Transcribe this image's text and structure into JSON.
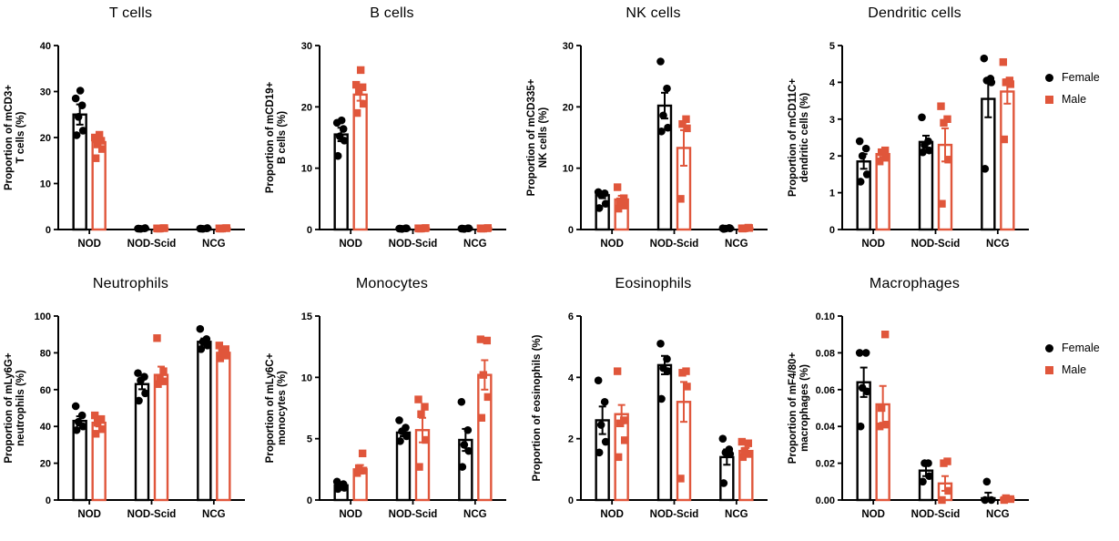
{
  "figure": {
    "background": "#ffffff",
    "female_color": "#000000",
    "male_color": "#E0563B"
  },
  "legend": {
    "items": [
      {
        "label": "Female",
        "marker": "circle",
        "color": "#000000"
      },
      {
        "label": "Male",
        "marker": "square",
        "color": "#E0563B"
      }
    ]
  },
  "chart_data": [
    {
      "id": "t-cells",
      "type": "bar",
      "title": "T cells",
      "ylabel_lines": [
        "Proportion of mCD3+",
        "T cells (%)"
      ],
      "ylim": [
        0,
        40
      ],
      "yticks": [
        0,
        10,
        20,
        30,
        40
      ],
      "ytick_labels": [
        "0",
        "10",
        "20",
        "30",
        "40"
      ],
      "categories": [
        "NOD",
        "NOD-Scid",
        "NCG"
      ],
      "series": [
        {
          "name": "Female",
          "marker": "circle",
          "color": "#000000",
          "means": [
            25,
            0.2,
            0.25
          ],
          "sem": [
            2.2,
            0,
            0
          ],
          "points": [
            [
              20.5,
              21.5,
              24.5,
              27,
              28.5,
              30.2
            ],
            [
              0.2,
              0.3,
              0.15,
              0.25,
              0.2
            ],
            [
              0.2,
              0.3,
              0.15,
              0.25,
              0.2
            ]
          ]
        },
        {
          "name": "Male",
          "marker": "square",
          "color": "#E0563B",
          "means": [
            19,
            0.25,
            0.3
          ],
          "sem": [
            0.9,
            0,
            0
          ],
          "points": [
            [
              15.5,
              17.5,
              18.5,
              19.3,
              20,
              20.6
            ],
            [
              0.2,
              0.3,
              0.2,
              0.3,
              0.25
            ],
            [
              0.2,
              0.3,
              0.2,
              0.3,
              0.25
            ]
          ]
        }
      ]
    },
    {
      "id": "b-cells",
      "type": "bar",
      "title": "B cells",
      "ylabel_lines": [
        "Proportion of mCD19+",
        "B cells (%)"
      ],
      "ylim": [
        0,
        30
      ],
      "yticks": [
        0,
        10,
        20,
        30
      ],
      "ytick_labels": [
        "0",
        "10",
        "20",
        "30"
      ],
      "categories": [
        "NOD",
        "NOD-Scid",
        "NCG"
      ],
      "series": [
        {
          "name": "Female",
          "marker": "circle",
          "color": "#000000",
          "means": [
            15.5,
            0.15,
            0.2
          ],
          "sem": [
            1.1,
            0,
            0
          ],
          "points": [
            [
              12,
              14.5,
              15.2,
              16.4,
              17.4,
              17.8
            ],
            [
              0.15,
              0.2,
              0.1,
              0.2,
              0.15
            ],
            [
              0.15,
              0.2,
              0.1,
              0.2,
              0.15
            ]
          ]
        },
        {
          "name": "Male",
          "marker": "square",
          "color": "#E0563B",
          "means": [
            22,
            0.2,
            0.25
          ],
          "sem": [
            1.0,
            0,
            0
          ],
          "points": [
            [
              19,
              20.5,
              22.6,
              23.2,
              23.6,
              26
            ],
            [
              0.15,
              0.25,
              0.15,
              0.2,
              0.2
            ],
            [
              0.15,
              0.25,
              0.15,
              0.2,
              0.2
            ]
          ]
        }
      ]
    },
    {
      "id": "nk-cells",
      "type": "bar",
      "title": "NK cells",
      "ylabel_lines": [
        "Proportion of mCD335+",
        "NK cells (%)"
      ],
      "ylim": [
        0,
        30
      ],
      "yticks": [
        0,
        10,
        20,
        30
      ],
      "ytick_labels": [
        "0",
        "10",
        "20",
        "30"
      ],
      "categories": [
        "NOD",
        "NOD-Scid",
        "NCG"
      ],
      "series": [
        {
          "name": "Female",
          "marker": "circle",
          "color": "#000000",
          "means": [
            5.6,
            20.2,
            0.2
          ],
          "sem": [
            0.5,
            2.1,
            0
          ],
          "points": [
            [
              3.5,
              4.2,
              5.6,
              5.9,
              6.1
            ],
            [
              16,
              16.6,
              18.6,
              23,
              27.4
            ],
            [
              0.1,
              0.2,
              0.15,
              0.25,
              0.2
            ]
          ]
        },
        {
          "name": "Male",
          "marker": "square",
          "color": "#E0563B",
          "means": [
            4.9,
            13.3,
            0.25
          ],
          "sem": [
            0.6,
            2.9,
            0
          ],
          "points": [
            [
              3.4,
              3.9,
              4.6,
              5.1,
              6.9
            ],
            [
              5,
              16.5,
              17.2,
              18
            ],
            [
              0.15,
              0.25,
              0.2,
              0.3,
              0.2
            ]
          ]
        }
      ]
    },
    {
      "id": "dendritic-cells",
      "type": "bar",
      "title": "Dendritic cells",
      "ylabel_lines": [
        "Proportion of mCD11C+",
        "dendritic cells (%)"
      ],
      "ylim": [
        0,
        5
      ],
      "yticks": [
        0,
        1,
        2,
        3,
        4,
        5
      ],
      "ytick_labels": [
        "0",
        "1",
        "2",
        "3",
        "4",
        "5"
      ],
      "categories": [
        "NOD",
        "NOD-Scid",
        "NCG"
      ],
      "series": [
        {
          "name": "Female",
          "marker": "circle",
          "color": "#000000",
          "means": [
            1.85,
            2.38,
            3.55
          ],
          "sem": [
            0.2,
            0.17,
            0.5
          ],
          "points": [
            [
              1.3,
              1.5,
              2.0,
              2.2,
              2.4
            ],
            [
              2.1,
              2.15,
              2.3,
              2.4,
              3.05
            ],
            [
              1.65,
              4.0,
              4.05,
              4.1,
              4.65
            ]
          ]
        },
        {
          "name": "Male",
          "marker": "square",
          "color": "#E0563B",
          "means": [
            2.05,
            2.3,
            3.75
          ],
          "sem": [
            0.08,
            0.45,
            0.33
          ],
          "points": [
            [
              1.85,
              1.95,
              2.1,
              2.15
            ],
            [
              0.7,
              1.9,
              2.9,
              3.0,
              3.35
            ],
            [
              2.45,
              3.95,
              4.0,
              4.05,
              4.55
            ]
          ]
        }
      ]
    },
    {
      "id": "neutrophils",
      "type": "bar",
      "title": "Neutrophils",
      "ylabel_lines": [
        "Proportion of mLy6G+",
        "neutrophils (%)"
      ],
      "ylim": [
        0,
        100
      ],
      "yticks": [
        0,
        20,
        40,
        60,
        80,
        100
      ],
      "ytick_labels": [
        "0",
        "20",
        "40",
        "60",
        "80",
        "100"
      ],
      "categories": [
        "NOD",
        "NOD-Scid",
        "NCG"
      ],
      "series": [
        {
          "name": "Female",
          "marker": "circle",
          "color": "#000000",
          "means": [
            43,
            63,
            86
          ],
          "sem": [
            2.5,
            2.8,
            1.8
          ],
          "points": [
            [
              38,
              40,
              42.5,
              46,
              51
            ],
            [
              54,
              58,
              65,
              67,
              69
            ],
            [
              82,
              84,
              86,
              87.5,
              93
            ]
          ]
        },
        {
          "name": "Male",
          "marker": "square",
          "color": "#E0563B",
          "means": [
            42,
            68,
            80
          ],
          "sem": [
            2,
            4.5,
            1.5
          ],
          "points": [
            [
              36,
              38.5,
              42,
              44,
              46
            ],
            [
              63,
              64.5,
              66.5,
              70,
              88
            ],
            [
              77,
              78.5,
              80,
              82,
              84
            ]
          ]
        }
      ]
    },
    {
      "id": "monocytes",
      "type": "bar",
      "title": "Monocytes",
      "ylabel_lines": [
        "Proportion of mLy6C+",
        "monocytes (%)"
      ],
      "ylim": [
        0,
        15
      ],
      "yticks": [
        0,
        5,
        10,
        15
      ],
      "ytick_labels": [
        "0",
        "5",
        "10",
        "15"
      ],
      "categories": [
        "NOD",
        "NOD-Scid",
        "NCG"
      ],
      "series": [
        {
          "name": "Female",
          "marker": "circle",
          "color": "#000000",
          "means": [
            1.2,
            5.5,
            4.9
          ],
          "sem": [
            0.15,
            0.3,
            0.9
          ],
          "points": [
            [
              0.9,
              1.0,
              1.15,
              1.3,
              1.5
            ],
            [
              4.8,
              5.2,
              5.6,
              5.9,
              6.5
            ],
            [
              2.7,
              4.0,
              4.5,
              5.7,
              8.0
            ]
          ]
        },
        {
          "name": "Male",
          "marker": "square",
          "color": "#E0563B",
          "means": [
            2.5,
            5.7,
            10.2
          ],
          "sem": [
            0.35,
            1.0,
            1.2
          ],
          "points": [
            [
              2.2,
              2.4,
              2.6,
              3.8
            ],
            [
              2.7,
              4.9,
              7.0,
              7.6,
              8.2
            ],
            [
              6.7,
              8.4,
              10.2,
              13.0,
              13.1
            ]
          ]
        }
      ]
    },
    {
      "id": "eosinophils",
      "type": "bar",
      "title": "Eosinophils",
      "ylabel_lines": [
        "Proportion of eosinophils (%)"
      ],
      "ylim": [
        0,
        6
      ],
      "yticks": [
        0,
        2,
        4,
        6
      ],
      "ytick_labels": [
        "0",
        "2",
        "4",
        "6"
      ],
      "categories": [
        "NOD",
        "NOD-Scid",
        "NCG"
      ],
      "series": [
        {
          "name": "Female",
          "marker": "circle",
          "color": "#000000",
          "means": [
            2.6,
            4.4,
            1.4
          ],
          "sem": [
            0.45,
            0.3,
            0.25
          ],
          "points": [
            [
              1.55,
              1.9,
              2.45,
              3.2,
              3.9
            ],
            [
              3.3,
              4.2,
              4.3,
              4.6,
              5.1
            ],
            [
              0.55,
              1.5,
              1.55,
              1.65,
              2.0
            ]
          ]
        },
        {
          "name": "Male",
          "marker": "square",
          "color": "#E0563B",
          "means": [
            2.8,
            3.2,
            1.6
          ],
          "sem": [
            0.3,
            0.65,
            0.1
          ],
          "points": [
            [
              1.4,
              1.95,
              2.5,
              2.6,
              4.2
            ],
            [
              0.7,
              3.7,
              4.15,
              4.2
            ],
            [
              1.4,
              1.5,
              1.6,
              1.85,
              1.9
            ]
          ]
        }
      ]
    },
    {
      "id": "macrophages",
      "type": "bar",
      "title": "Macrophages",
      "ylabel_lines": [
        "Proportion of mF4/80+",
        "macrophages (%)"
      ],
      "ylim": [
        0,
        0.1
      ],
      "yticks": [
        0,
        0.02,
        0.04,
        0.06,
        0.08,
        0.1
      ],
      "ytick_labels": [
        "0.00",
        "0.02",
        "0.04",
        "0.06",
        "0.08",
        "0.10"
      ],
      "categories": [
        "NOD",
        "NOD-Scid",
        "NCG"
      ],
      "series": [
        {
          "name": "Female",
          "marker": "circle",
          "color": "#000000",
          "means": [
            0.064,
            0.016,
            0.001
          ],
          "sem": [
            0.008,
            0.003,
            0.003
          ],
          "points": [
            [
              0.04,
              0.059,
              0.061,
              0.08,
              0.08
            ],
            [
              0.01,
              0.013,
              0.02,
              0.02
            ],
            [
              0.0,
              0.0,
              0.01
            ]
          ]
        },
        {
          "name": "Male",
          "marker": "square",
          "color": "#E0563B",
          "means": [
            0.052,
            0.009,
            0.0008
          ],
          "sem": [
            0.01,
            0.004,
            0
          ],
          "points": [
            [
              0.04,
              0.041,
              0.05,
              0.09
            ],
            [
              0.0,
              0.005,
              0.02,
              0.021
            ],
            [
              0.0,
              0.0005,
              0.001
            ]
          ]
        }
      ]
    }
  ]
}
